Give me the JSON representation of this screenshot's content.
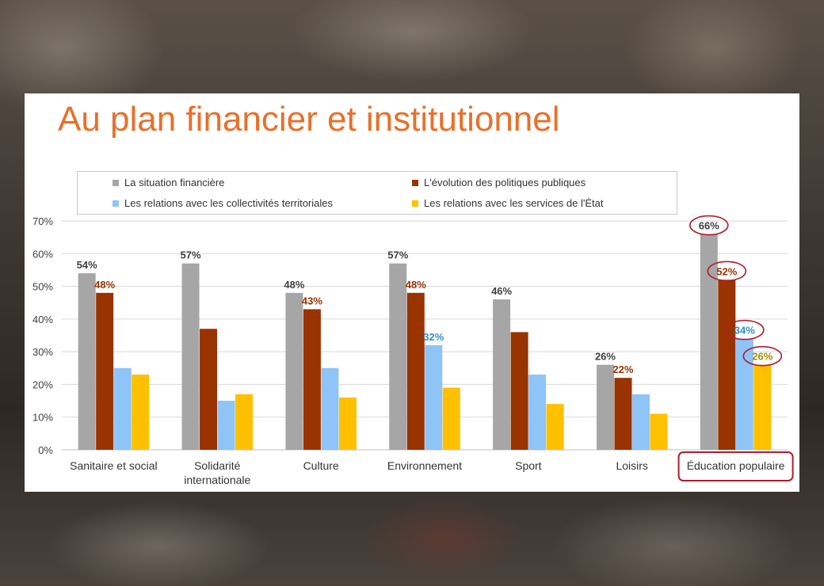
{
  "slide_title": "Au plan financier et institutionnel",
  "chart_data": {
    "type": "bar",
    "title": "",
    "xlabel": "",
    "ylabel": "",
    "ylim": [
      0,
      70
    ],
    "y_ticks": [
      "0%",
      "10%",
      "20%",
      "30%",
      "40%",
      "50%",
      "60%",
      "70%"
    ],
    "grid": true,
    "legend_position": "top",
    "categories": [
      "Sanitaire et social",
      "Solidarité internationale",
      "Culture",
      "Environnement",
      "Sport",
      "Loisirs",
      "Éducation populaire"
    ],
    "series": [
      {
        "name": "La situation financière",
        "color": "#a6a6a6",
        "label_color": "#404040",
        "values": [
          54,
          57,
          48,
          57,
          46,
          26,
          66
        ],
        "labels": [
          "54%",
          "57%",
          "48%",
          "57%",
          "46%",
          "26%",
          "66%"
        ]
      },
      {
        "name": "L'évolution des politiques publiques",
        "color": "#993300",
        "label_color": "#993300",
        "values": [
          48,
          37,
          43,
          48,
          36,
          22,
          52
        ],
        "labels": [
          "48%",
          "",
          "43%",
          "48%",
          "",
          "22%",
          "52%"
        ]
      },
      {
        "name": "Les relations avec les collectivités territoriales",
        "color": "#8fc4f7",
        "label_color": "#2e8ed6",
        "values": [
          25,
          15,
          25,
          32,
          23,
          17,
          34
        ],
        "labels": [
          "",
          "",
          "",
          "32%",
          "",
          "",
          "34%"
        ]
      },
      {
        "name": "Les relations avec les services de l'État",
        "color": "#ffc000",
        "label_color": "#a88a00",
        "values": [
          23,
          17,
          16,
          19,
          14,
          11,
          26
        ],
        "labels": [
          "",
          "",
          "",
          "",
          "",
          "",
          "26%"
        ]
      }
    ],
    "highlight_category": "Éducation populaire",
    "highlight_color": "#b01c2e"
  }
}
